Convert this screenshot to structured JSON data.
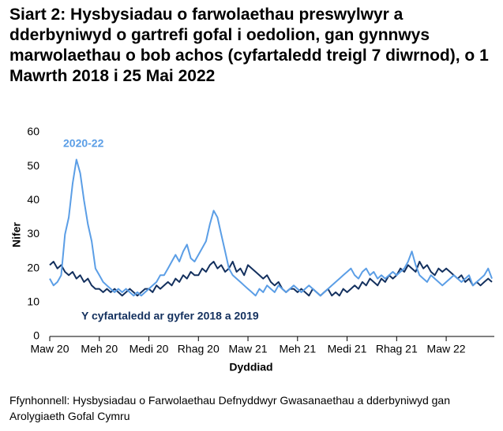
{
  "chart_data": {
    "type": "line",
    "title": "Siart 2: Hysbysiadau o farwolaethau preswylwyr a dderbyniwyd o gartrefi gofal i oedolion, gan gynnwys marwolaethau o bob achos (cyfartaledd treigl 7 diwrnod), o 1 Mawrth 2018 i 25 Mai 2022",
    "x_label": "Dyddiad",
    "y_label": "Nifer",
    "source": "Ffynhonnell: Hysbysiadau o Farwolaethau Defnyddwyr Gwasanaethau a dderbyniwyd gan Arolygiaeth Gofal Cymru",
    "categories": [
      "Maw 20",
      null,
      null,
      null,
      null,
      null,
      null,
      null,
      null,
      null,
      null,
      null,
      null,
      "Meh 20",
      null,
      null,
      null,
      null,
      null,
      null,
      null,
      null,
      null,
      null,
      null,
      null,
      "Medi 20",
      null,
      null,
      null,
      null,
      null,
      null,
      null,
      null,
      null,
      null,
      null,
      null,
      "Rhag 20",
      null,
      null,
      null,
      null,
      null,
      null,
      null,
      null,
      null,
      null,
      null,
      null,
      "Maw 21",
      null,
      null,
      null,
      null,
      null,
      null,
      null,
      null,
      null,
      null,
      null,
      null,
      "Meh 21",
      null,
      null,
      null,
      null,
      null,
      null,
      null,
      null,
      null,
      null,
      null,
      null,
      "Medi 21",
      null,
      null,
      null,
      null,
      null,
      null,
      null,
      null,
      null,
      null,
      null,
      null,
      "Rhag 21",
      null,
      null,
      null,
      null,
      null,
      null,
      null,
      null,
      null,
      null,
      null,
      null,
      "Maw 22",
      null,
      null,
      null,
      null,
      null,
      null,
      null,
      null,
      null,
      null,
      null,
      null
    ],
    "series": [
      {
        "name": "2020-22",
        "color": "#5b9ee6",
        "values": [
          17,
          15,
          16,
          18,
          30,
          35,
          45,
          52,
          48,
          40,
          33,
          28,
          20,
          18,
          16,
          15,
          14,
          13,
          14,
          13,
          14,
          13,
          12,
          13,
          12,
          13,
          14,
          15,
          16,
          18,
          18,
          20,
          22,
          24,
          22,
          25,
          27,
          23,
          22,
          24,
          26,
          28,
          33,
          37,
          35,
          30,
          25,
          20,
          18,
          17,
          16,
          15,
          14,
          13,
          12,
          14,
          13,
          15,
          14,
          13,
          15,
          14,
          13,
          14,
          15,
          14,
          13,
          14,
          15,
          14,
          13,
          12,
          13,
          14,
          15,
          16,
          17,
          18,
          19,
          20,
          18,
          17,
          19,
          20,
          18,
          19,
          17,
          18,
          17,
          18,
          19,
          18,
          19,
          20,
          22,
          25,
          21,
          18,
          17,
          16,
          18,
          17,
          16,
          15,
          16,
          17,
          18,
          17,
          16,
          17,
          18,
          15,
          16,
          17,
          18,
          20,
          17
        ]
      },
      {
        "name": "Y cyfartaledd ar gyfer 2018 a 2019",
        "color": "#13305e",
        "values": [
          21,
          22,
          20,
          21,
          19,
          18,
          19,
          17,
          18,
          16,
          17,
          15,
          14,
          14,
          13,
          14,
          13,
          14,
          13,
          12,
          13,
          14,
          13,
          12,
          13,
          14,
          14,
          13,
          15,
          14,
          15,
          16,
          15,
          17,
          16,
          18,
          17,
          19,
          18,
          18,
          20,
          19,
          21,
          22,
          20,
          21,
          19,
          20,
          22,
          19,
          20,
          18,
          21,
          20,
          19,
          18,
          17,
          18,
          16,
          15,
          16,
          14,
          13,
          14,
          14,
          13,
          14,
          13,
          12,
          14,
          13,
          12,
          13,
          14,
          12,
          13,
          12,
          14,
          13,
          14,
          15,
          14,
          16,
          15,
          17,
          16,
          15,
          17,
          16,
          18,
          17,
          18,
          20,
          19,
          21,
          20,
          19,
          22,
          20,
          21,
          19,
          18,
          20,
          19,
          20,
          19,
          18,
          17,
          18,
          16,
          17,
          15,
          16,
          15,
          16,
          17,
          16
        ]
      }
    ],
    "ylim": [
      0,
      60
    ],
    "yticks": [
      0,
      10,
      20,
      30,
      40,
      50,
      60
    ]
  }
}
